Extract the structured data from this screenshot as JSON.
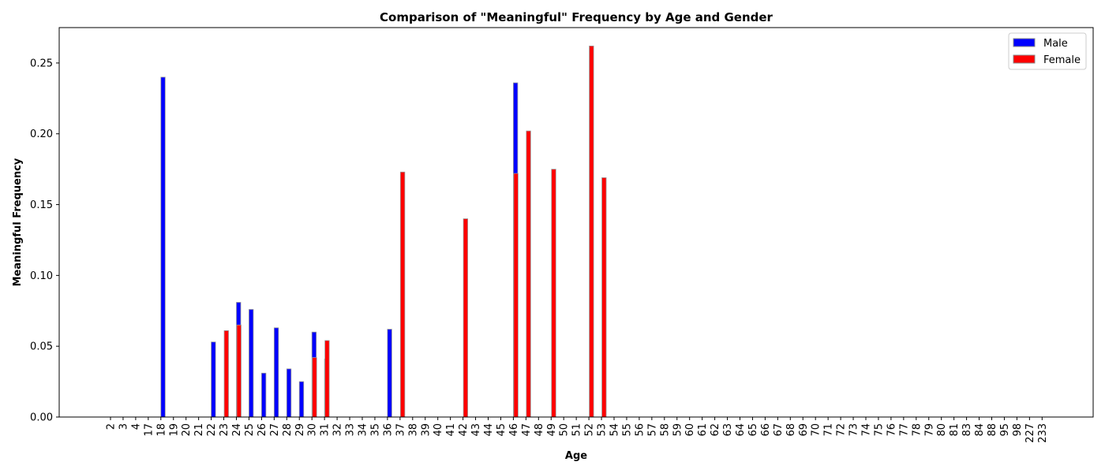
{
  "chart_data": {
    "type": "bar",
    "title": "Comparison of \"Meaningful\" Frequency by Age and Gender",
    "xlabel": "Age",
    "ylabel": "Meaningful Frequency",
    "ylim": [
      0,
      0.275
    ],
    "yticks": [
      0.0,
      0.05,
      0.1,
      0.15,
      0.2,
      0.25
    ],
    "ytick_labels": [
      "0.00",
      "0.05",
      "0.10",
      "0.15",
      "0.20",
      "0.25"
    ],
    "grid": false,
    "legend_position": "top-right",
    "categories": [
      "2",
      "3",
      "4",
      "17",
      "18",
      "19",
      "20",
      "21",
      "22",
      "23",
      "24",
      "25",
      "26",
      "27",
      "28",
      "29",
      "30",
      "31",
      "32",
      "33",
      "34",
      "35",
      "36",
      "37",
      "38",
      "39",
      "40",
      "41",
      "42",
      "43",
      "44",
      "45",
      "46",
      "47",
      "48",
      "49",
      "50",
      "51",
      "52",
      "53",
      "54",
      "55",
      "56",
      "57",
      "58",
      "59",
      "60",
      "61",
      "62",
      "63",
      "64",
      "65",
      "66",
      "67",
      "68",
      "69",
      "70",
      "71",
      "72",
      "73",
      "74",
      "75",
      "76",
      "77",
      "78",
      "79",
      "80",
      "81",
      "83",
      "84",
      "88",
      "95",
      "98",
      "227",
      "233"
    ],
    "series": [
      {
        "name": "Male",
        "color": "#0000ff",
        "values": [
          0,
          0,
          0,
          0,
          0.24,
          0,
          0,
          0,
          0.053,
          0,
          0.081,
          0.076,
          0.031,
          0.063,
          0.034,
          0.025,
          0.06,
          0.041,
          0,
          0,
          0,
          0,
          0.062,
          0,
          0,
          0,
          0,
          0,
          0,
          0,
          0,
          0,
          0.236,
          0,
          0,
          0,
          0,
          0,
          0,
          0,
          0,
          0,
          0,
          0,
          0,
          0,
          0,
          0,
          0,
          0,
          0,
          0,
          0,
          0,
          0,
          0,
          0,
          0,
          0,
          0,
          0,
          0,
          0,
          0,
          0,
          0,
          0,
          0,
          0,
          0,
          0,
          0,
          0,
          0,
          0
        ]
      },
      {
        "name": "Female",
        "color": "#ff0000",
        "values": [
          0,
          0,
          0,
          0,
          0,
          0,
          0,
          0,
          0,
          0.061,
          0.065,
          0,
          0,
          0,
          0,
          0,
          0.042,
          0.054,
          0,
          0,
          0,
          0,
          0,
          0.173,
          0,
          0,
          0,
          0,
          0.14,
          0,
          0,
          0,
          0.172,
          0.202,
          0,
          0.175,
          0,
          0,
          0.262,
          0.169,
          0,
          0,
          0,
          0,
          0,
          0,
          0,
          0,
          0,
          0,
          0,
          0,
          0,
          0,
          0,
          0,
          0,
          0,
          0,
          0,
          0,
          0,
          0,
          0,
          0,
          0,
          0,
          0,
          0,
          0,
          0,
          0,
          0,
          0,
          0
        ]
      }
    ]
  }
}
